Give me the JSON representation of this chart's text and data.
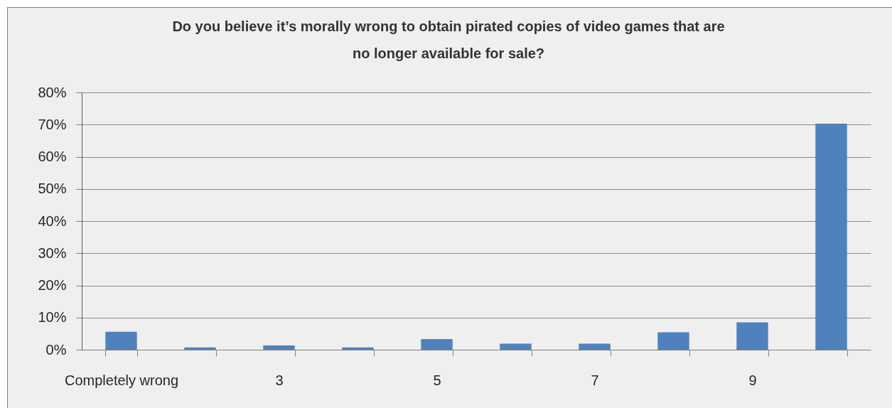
{
  "chart_data": {
    "type": "bar",
    "title": "Do you believe it’s morally wrong to obtain pirated copies of video games that are no longer available for sale?",
    "categories": [
      "Completely wrong",
      null,
      "3",
      null,
      "5",
      null,
      "7",
      null,
      "9",
      null
    ],
    "values": [
      5.6,
      0.7,
      1.3,
      0.7,
      3.3,
      1.9,
      1.9,
      5.4,
      8.5,
      70.3
    ],
    "color": "#4f81bd",
    "ylim": [
      0,
      80
    ],
    "yticks": [
      {
        "value": 0,
        "label": "0%"
      },
      {
        "value": 10,
        "label": "10%"
      },
      {
        "value": 20,
        "label": "20%"
      },
      {
        "value": 30,
        "label": "30%"
      },
      {
        "value": 40,
        "label": "40%"
      },
      {
        "value": 50,
        "label": "50%"
      },
      {
        "value": 60,
        "label": "60%"
      },
      {
        "value": 70,
        "label": "70%"
      },
      {
        "value": 80,
        "label": "80%"
      }
    ],
    "grid": "y"
  }
}
